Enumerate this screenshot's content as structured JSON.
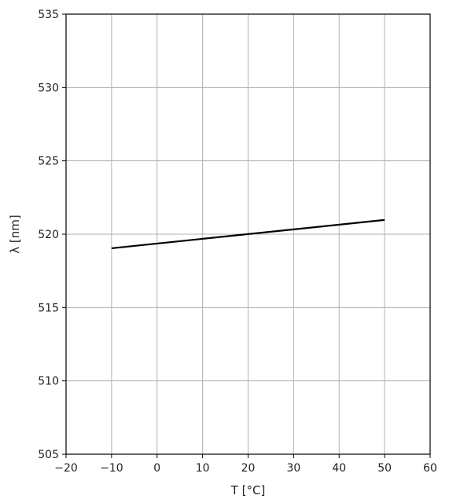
{
  "chart_data": {
    "type": "line",
    "xlabel": "T [°C]",
    "ylabel": "λ [nm]",
    "xlim": [
      -20,
      60
    ],
    "ylim": [
      505,
      535
    ],
    "xticks": [
      -20,
      -10,
      0,
      10,
      20,
      30,
      40,
      50,
      60
    ],
    "yticks": [
      505,
      510,
      515,
      520,
      525,
      530,
      535
    ],
    "xtick_labels": [
      "−20",
      "−10",
      "0",
      "10",
      "20",
      "30",
      "40",
      "50",
      "60"
    ],
    "ytick_labels": [
      "505",
      "510",
      "515",
      "520",
      "525",
      "530",
      "535"
    ],
    "grid": true,
    "series": [
      {
        "color": "#000000",
        "x": [
          -10,
          50
        ],
        "y": [
          519.04,
          520.97
        ]
      }
    ]
  }
}
